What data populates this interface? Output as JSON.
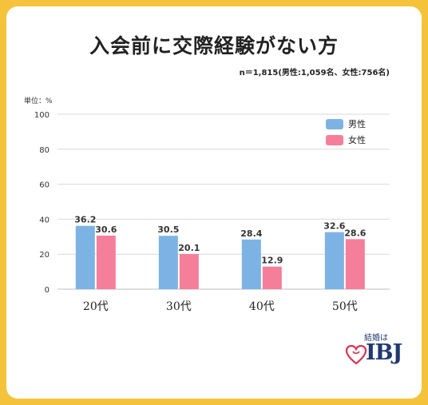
{
  "title": "入会前に交際経験がない方",
  "sample_note": "n＝1,815(男性:1,059名、女性:756名)",
  "unit_label": "単位：%",
  "logo": {
    "tagline": "結婚は",
    "name": "IBJ"
  },
  "colors": {
    "male": "#7db3e4",
    "female": "#f57f9b",
    "grid": "#d9d9d9",
    "background": "#f5c33b"
  },
  "chart_data": {
    "type": "bar",
    "categories": [
      "20代",
      "30代",
      "40代",
      "50代"
    ],
    "series": [
      {
        "name": "男性",
        "values": [
          36.2,
          30.5,
          28.4,
          32.6
        ]
      },
      {
        "name": "女性",
        "values": [
          30.6,
          20.1,
          12.9,
          28.6
        ]
      }
    ],
    "yticks": [
      "0",
      "20",
      "40",
      "60",
      "80",
      "100"
    ],
    "ylim": [
      0,
      100
    ],
    "grid": true,
    "legend_position": "top-right"
  }
}
